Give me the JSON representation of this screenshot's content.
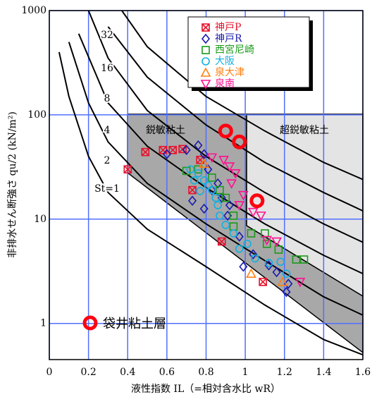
{
  "chart_data": {
    "type": "scatter",
    "xlabel": "液性指数 IL（=相対含水比 wR）",
    "ylabel": "非排水せん断強さ qu/2 (kN/m²)",
    "xlim": [
      0,
      1.6
    ],
    "ylim": [
      0.45,
      1000
    ],
    "log_y": true,
    "grid": true,
    "grid_color": "#5070ff",
    "xticks": [
      0,
      0.2,
      0.4,
      0.6,
      0.8,
      1,
      1.2,
      1.4,
      1.6
    ],
    "yticks": [
      1,
      10,
      100,
      1000
    ],
    "regions": [
      "鋭敏粘土",
      "超鋭敏粘土"
    ],
    "curves": [
      {
        "name": "St=1",
        "x": [
          0.05,
          0.1,
          0.2,
          0.3,
          0.5,
          0.8,
          1.1,
          1.4,
          1.6
        ],
        "y": [
          400,
          150,
          40,
          18,
          8,
          3.5,
          1.5,
          0.7,
          0.5
        ]
      },
      {
        "name": "2",
        "x": [
          0.1,
          0.2,
          0.3,
          0.5,
          0.8,
          1.1,
          1.4,
          1.6
        ],
        "y": [
          500,
          130,
          55,
          22,
          9,
          4,
          1.8,
          1.2
        ]
      },
      {
        "name": "4",
        "x": [
          0.15,
          0.3,
          0.5,
          0.8,
          1.1,
          1.4,
          1.6
        ],
        "y": [
          600,
          130,
          50,
          20,
          9,
          4.5,
          3
        ]
      },
      {
        "name": "8",
        "x": [
          0.2,
          0.3,
          0.5,
          0.8,
          1.1,
          1.4,
          1.6
        ],
        "y": [
          1000,
          350,
          110,
          40,
          18,
          9,
          6
        ]
      },
      {
        "name": "16",
        "x": [
          0.3,
          0.5,
          0.8,
          1.1,
          1.4,
          1.6
        ],
        "y": [
          700,
          230,
          80,
          35,
          18,
          12
        ]
      },
      {
        "name": "32",
        "x": [
          0.37,
          0.5,
          0.8,
          1.1,
          1.4,
          1.6
        ],
        "y": [
          1000,
          450,
          150,
          70,
          35,
          24
        ]
      }
    ],
    "legend": "upper right",
    "series": [
      {
        "name": "神戸P",
        "color": "#e8102a",
        "marker": "square-x",
        "x": [
          0.4,
          0.49,
          0.58,
          0.63,
          0.68,
          0.73,
          0.77,
          0.88,
          1.09
        ],
        "y": [
          30,
          44,
          46,
          46,
          47,
          19,
          37,
          6.1,
          2.5
        ]
      },
      {
        "name": "神戸R",
        "color": "#1a1ab0",
        "marker": "diamond",
        "x": [
          0.6,
          0.7,
          0.76,
          0.79,
          0.81,
          0.73,
          0.79,
          0.83,
          0.88,
          0.91,
          0.97,
          0.99,
          1.04,
          1.12,
          1.16,
          1.22,
          1.21,
          0.86,
          0.92
        ],
        "y": [
          42,
          46,
          51,
          42,
          30,
          15,
          12.6,
          19,
          16,
          10.8,
          6.8,
          3.5,
          4.6,
          3.6,
          3.1,
          2.4,
          2.0,
          22,
          13.6
        ]
      },
      {
        "name": "西宮尼崎",
        "color": "#1a9a1a",
        "marker": "square",
        "x": [
          0.7,
          0.76,
          0.83,
          0.87,
          0.9,
          0.94,
          1.03,
          1.11,
          1.17,
          1.1,
          1.26,
          1.3,
          0.94
        ],
        "y": [
          29,
          30,
          25,
          19,
          16,
          8.5,
          7.3,
          5.8,
          5.1,
          7.3,
          4.1,
          4.1,
          10.8
        ]
      },
      {
        "name": "大阪",
        "color": "#10b0e0",
        "marker": "circle",
        "x": [
          0.72,
          0.76,
          0.79,
          0.81,
          0.83,
          0.77,
          0.85,
          0.86,
          0.87,
          0.9,
          0.94,
          0.97,
          1.01,
          1.05,
          1.12,
          1.18,
          1.21,
          0.74
        ],
        "y": [
          30,
          27.5,
          23.5,
          21,
          19,
          18.6,
          16,
          13.6,
          10.8,
          8.8,
          7.3,
          5.2,
          5.8,
          4.2,
          3.8,
          3.9,
          3.0,
          23.5
        ]
      },
      {
        "name": "泉大津",
        "color": "#ff8010",
        "marker": "triangle",
        "x": [
          0.79,
          1.03,
          1.19
        ],
        "y": [
          34,
          3.0,
          2.5
        ]
      },
      {
        "name": "泉南",
        "color": "#ff1090",
        "marker": "triangle-down",
        "x": [
          0.83,
          0.89,
          0.92,
          0.95,
          0.93,
          0.99,
          0.97,
          1.04,
          1.08,
          1.11,
          1.16,
          1.28
        ],
        "y": [
          39,
          37,
          32,
          27.5,
          22,
          17,
          13.6,
          11.7,
          10.8,
          6.3,
          6.1,
          2.5
        ]
      }
    ],
    "highlight": {
      "name": "袋井粘土層",
      "color": "#ff0010",
      "x": [
        0.9,
        0.97,
        1.06
      ],
      "y": [
        70,
        55,
        15
      ]
    }
  }
}
